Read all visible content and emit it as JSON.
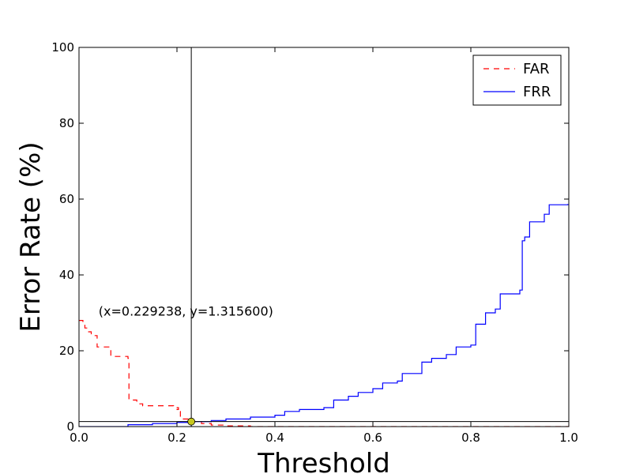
{
  "chart_data": {
    "type": "line",
    "xlabel": "Threshold",
    "ylabel": "Error Rate (%)",
    "xlim": [
      0.0,
      1.0
    ],
    "ylim": [
      0,
      100
    ],
    "x_ticks": [
      "0.0",
      "0.2",
      "0.4",
      "0.6",
      "0.8",
      "1.0"
    ],
    "y_ticks": [
      "0",
      "20",
      "40",
      "60",
      "80",
      "100"
    ],
    "grid": false,
    "legend_position": "top-right",
    "series": [
      {
        "name": "FAR",
        "color": "#ff0000",
        "line_style": "dashed",
        "step": true,
        "x": [
          0.0,
          0.008,
          0.012,
          0.018,
          0.025,
          0.037,
          0.06,
          0.065,
          0.1,
          0.102,
          0.118,
          0.13,
          0.193,
          0.203,
          0.2,
          0.207,
          0.229238,
          0.25,
          0.27,
          0.3,
          0.35,
          1.0
        ],
        "y": [
          28.0,
          27.0,
          26.0,
          25.0,
          24.0,
          21.0,
          21.0,
          18.5,
          18.0,
          7.0,
          6.0,
          5.5,
          5.0,
          4.5,
          4.0,
          2.0,
          1.3156,
          0.8,
          0.4,
          0.2,
          0.0,
          0.0
        ]
      },
      {
        "name": "FRR",
        "color": "#0000ff",
        "line_style": "solid",
        "step": true,
        "x": [
          0.0,
          0.1,
          0.15,
          0.2,
          0.229238,
          0.27,
          0.3,
          0.35,
          0.4,
          0.42,
          0.45,
          0.5,
          0.52,
          0.55,
          0.57,
          0.6,
          0.62,
          0.65,
          0.66,
          0.7,
          0.72,
          0.75,
          0.77,
          0.8,
          0.81,
          0.83,
          0.85,
          0.86,
          0.9,
          0.905,
          0.91,
          0.92,
          0.95,
          0.96,
          0.998
        ],
        "y": [
          0.0,
          0.5,
          0.8,
          1.1,
          1.3156,
          1.6,
          2.0,
          2.5,
          3.0,
          4.0,
          4.5,
          5.0,
          7.0,
          8.0,
          9.0,
          10.0,
          11.5,
          12.0,
          14.0,
          17.0,
          18.0,
          19.0,
          21.0,
          21.5,
          27.0,
          30.0,
          31.0,
          35.0,
          36.0,
          49.0,
          50.0,
          54.0,
          56.0,
          58.5,
          58.7
        ]
      }
    ],
    "vertical_line": {
      "x": 0.229238
    },
    "horizontal_line": {
      "y": 1.3156
    },
    "marker": {
      "x": 0.229238,
      "y": 1.3156,
      "color": "#c8c81e"
    },
    "annotation": {
      "text": "(x=0.229238, y=1.315600)",
      "x": 0.04,
      "y": 30.5
    }
  }
}
